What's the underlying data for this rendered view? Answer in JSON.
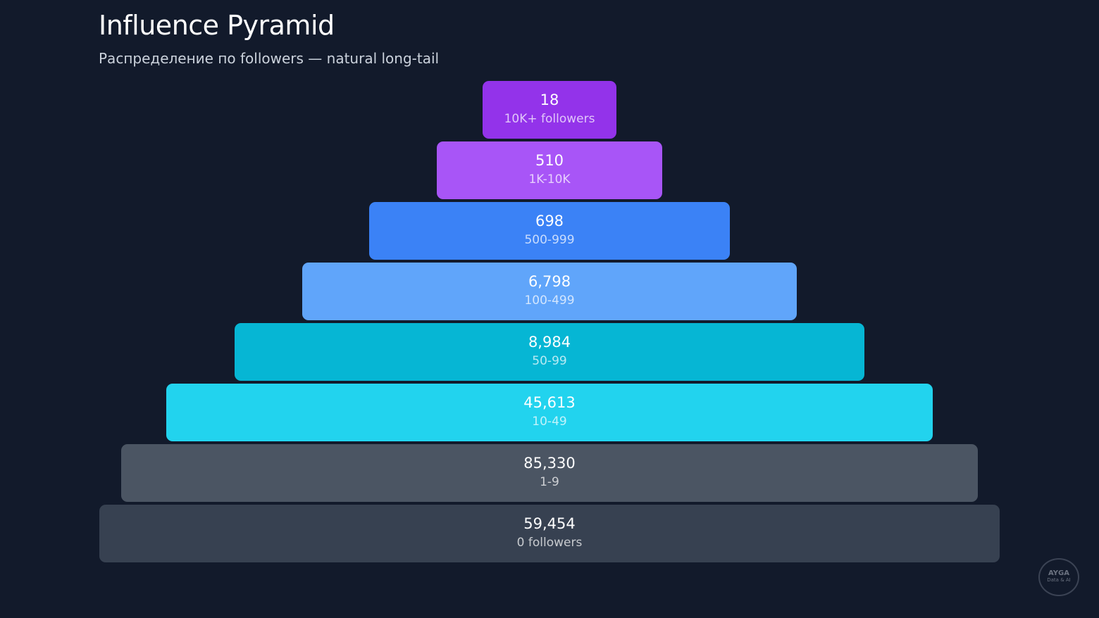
{
  "chart_data": {
    "type": "pyramid",
    "title": "Influence Pyramid",
    "subtitle": "Распределение по followers — natural long-tail",
    "levels": [
      {
        "value": "18",
        "label": "10K+ followers",
        "color": "#9333ea"
      },
      {
        "value": "510",
        "label": "1K-10K",
        "color": "#a855f7"
      },
      {
        "value": "698",
        "label": "500-999",
        "color": "#3b82f6"
      },
      {
        "value": "6,798",
        "label": "100-499",
        "color": "#60a5fa"
      },
      {
        "value": "8,984",
        "label": "50-99",
        "color": "#06b6d4"
      },
      {
        "value": "45,613",
        "label": "10-49",
        "color": "#22d3ee"
      },
      {
        "value": "85,330",
        "label": "1-9",
        "color": "#4b5563"
      },
      {
        "value": "59,454",
        "label": "0 followers",
        "color": "#374151"
      }
    ]
  },
  "logo": {
    "name": "AYGA",
    "tagline": "Data & AI"
  },
  "colors": {
    "background": "#121a2b"
  }
}
